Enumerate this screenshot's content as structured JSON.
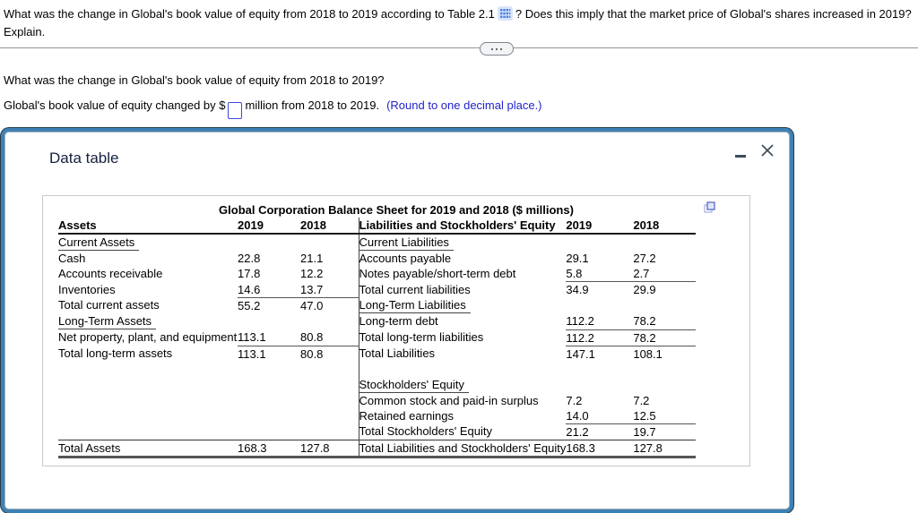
{
  "top_question": {
    "before_icon": "What was the change in Global's book value of equity from 2018 to 2019 according to Table 2.1",
    "after_icon": "? Does this imply that the market price of Global's shares increased in 2019? Explain."
  },
  "section": {
    "question": "What was the change in Global's book value of equity from 2018 to 2019?",
    "answer_before": "Global's book value of equity changed by $",
    "answer_value": "",
    "answer_after": "million from 2018 to 2019.",
    "answer_hint": "(Round to one decimal place.)"
  },
  "dialog": {
    "title": "Data table",
    "sheet_title": "Global Corporation Balance Sheet for 2019 and 2018 ($ millions)",
    "columns_left": [
      "Assets",
      "2019",
      "2018"
    ],
    "columns_right": [
      "Liabilities and Stockholders' Equity",
      "2019",
      "2018"
    ],
    "rows": [
      {
        "left": {
          "label": "Current Assets",
          "section": true
        },
        "right": {
          "label": "Current Liabilities",
          "section": true
        }
      },
      {
        "left": {
          "label": "Cash",
          "v2019": "22.8",
          "v2018": "21.1"
        },
        "right": {
          "label": "Accounts payable",
          "v2019": "29.1",
          "v2018": "27.2"
        }
      },
      {
        "left": {
          "label": "Accounts receivable",
          "v2019": "17.8",
          "v2018": "12.2"
        },
        "right": {
          "label": "Notes payable/short-term debt",
          "v2019": "5.8",
          "v2018": "2.7",
          "num_underline": true
        }
      },
      {
        "left": {
          "label": "Inventories",
          "v2019": "14.6",
          "v2018": "13.7",
          "num_underline": true
        },
        "right": {
          "label": "Total current liabilities",
          "v2019": "34.9",
          "v2018": "29.9",
          "indent": true
        }
      },
      {
        "left": {
          "label": "Total current assets",
          "v2019": "55.2",
          "v2018": "47.0",
          "indent": true
        },
        "right": {
          "label": "Long-Term Liabilities",
          "section": true,
          "indent_sm": true
        }
      },
      {
        "left": {
          "label": "Long-Term Assets",
          "section": true
        },
        "right": {
          "label": "Long-term debt",
          "v2019": "112.2",
          "v2018": "78.2",
          "num_underline": true
        }
      },
      {
        "left": {
          "label": "Net property, plant, and equipment",
          "v2019": "113.1",
          "v2018": "80.8",
          "num_underline": true
        },
        "right": {
          "label": "Total long-term liabilities",
          "v2019": "112.2",
          "v2018": "78.2",
          "indent": true,
          "num_underline": true
        }
      },
      {
        "left": {
          "label": "Total long-term assets",
          "v2019": "113.1",
          "v2018": "80.8",
          "indent": true
        },
        "right": {
          "label": "Total Liabilities",
          "v2019": "147.1",
          "v2018": "108.1",
          "bold": true
        }
      },
      {
        "left": {},
        "right": {}
      },
      {
        "left": {},
        "right": {
          "label": "Stockholders' Equity",
          "section": true
        }
      },
      {
        "left": {},
        "right": {
          "label": "Common stock and paid-in surplus",
          "v2019": "7.2",
          "v2018": "7.2"
        }
      },
      {
        "left": {},
        "right": {
          "label": "Retained earnings",
          "v2019": "14.0",
          "v2018": "12.5",
          "num_underline": true
        }
      },
      {
        "left": {},
        "right": {
          "label": "Total Stockholders' Equity",
          "v2019": "21.2",
          "v2018": "19.7",
          "bold": true
        }
      },
      {
        "left": {
          "label": "Total Assets",
          "v2019": "168.3",
          "v2018": "127.8",
          "bold": true,
          "top_border": true
        },
        "right": {
          "label": "Total Liabilities and Stockholders' Equity",
          "v2019": "168.3",
          "v2018": "127.8",
          "bold": true,
          "top_border": true,
          "two_line": true
        }
      }
    ]
  },
  "colors": {
    "popup_border_blue": "#3e81b4",
    "hint_blue": "#2222cc",
    "icon_blue": "#4a7fe0"
  }
}
